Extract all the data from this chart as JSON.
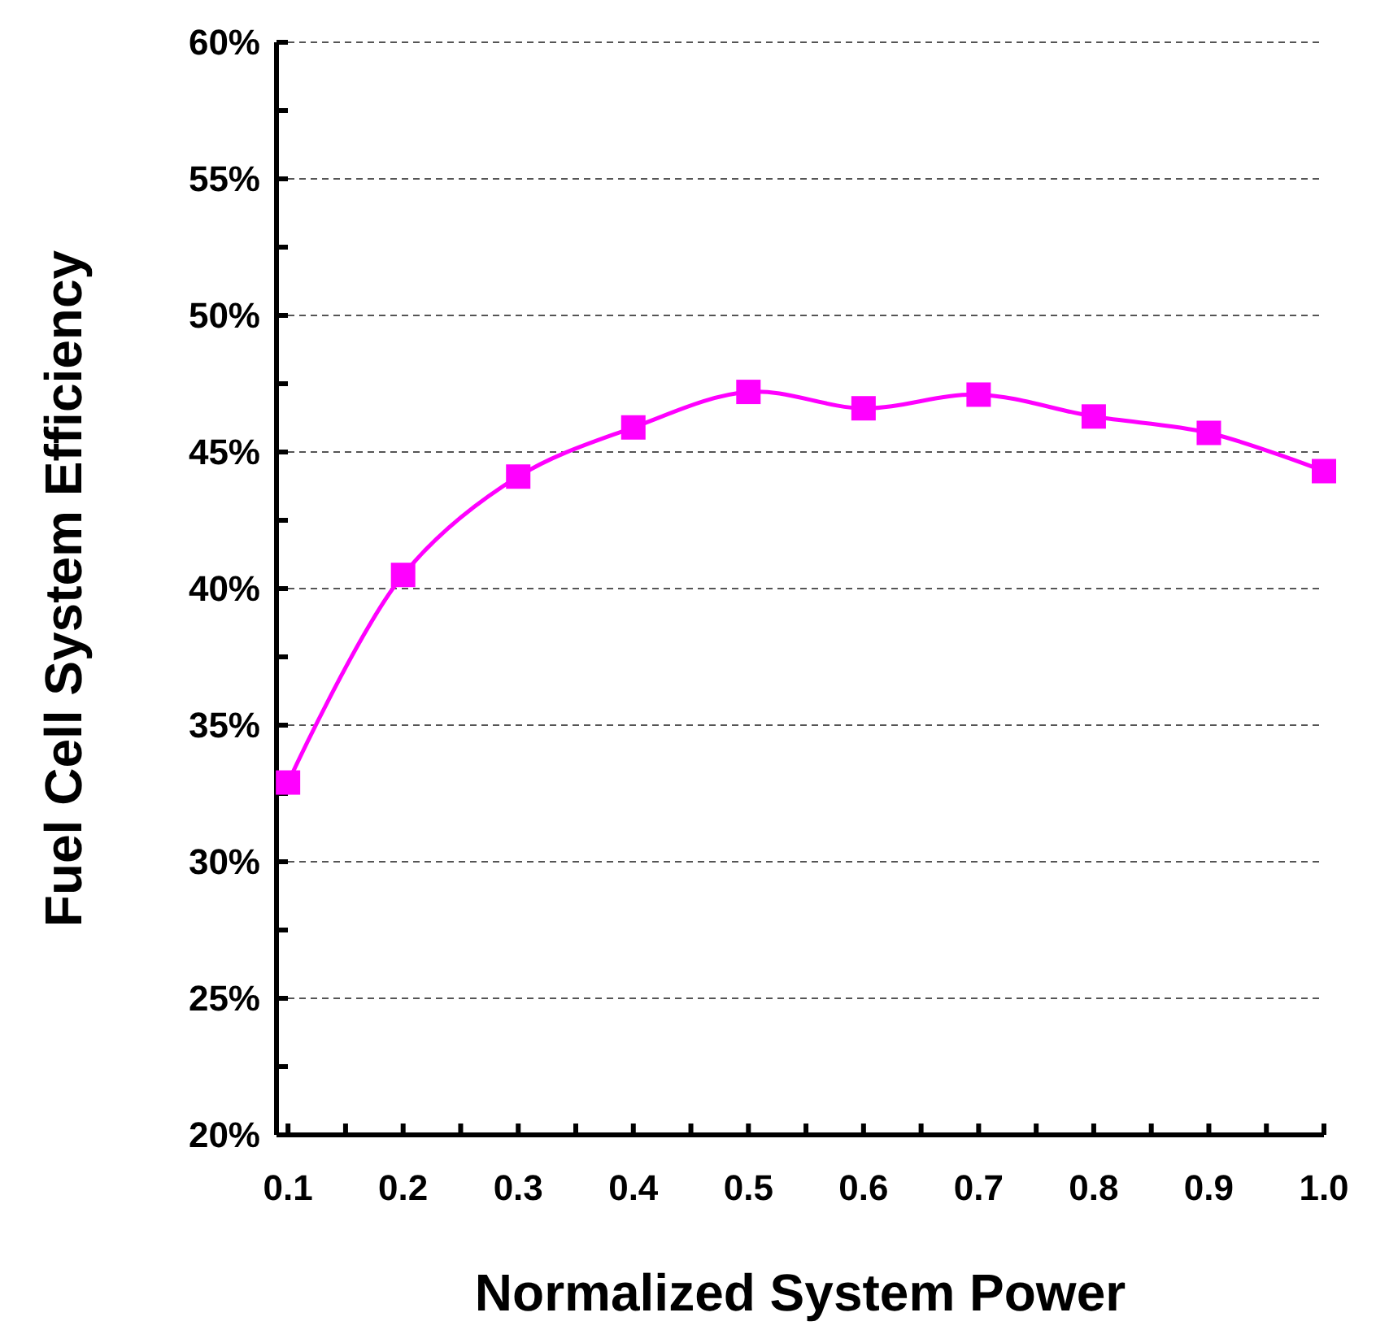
{
  "chart_data": {
    "type": "line",
    "xlabel": "Normalized System Power",
    "ylabel": "Fuel Cell System Efficiency",
    "x": [
      0.1,
      0.2,
      0.3,
      0.4,
      0.5,
      0.6,
      0.7,
      0.8,
      0.9,
      1.0
    ],
    "series": [
      {
        "color": "#ff00ff",
        "values": [
          32.9,
          40.5,
          44.1,
          45.9,
          47.2,
          46.6,
          47.1,
          46.3,
          45.7,
          44.3
        ]
      }
    ],
    "xlim": [
      0.09,
      1.0
    ],
    "xticks": [
      {
        "value": 0.1,
        "label": "0.1"
      },
      {
        "value": 0.15,
        "label": null
      },
      {
        "value": 0.2,
        "label": "0.2"
      },
      {
        "value": 0.25,
        "label": null
      },
      {
        "value": 0.3,
        "label": "0.3"
      },
      {
        "value": 0.35,
        "label": null
      },
      {
        "value": 0.4,
        "label": "0.4"
      },
      {
        "value": 0.45,
        "label": null
      },
      {
        "value": 0.5,
        "label": "0.5"
      },
      {
        "value": 0.55,
        "label": null
      },
      {
        "value": 0.6,
        "label": "0.6"
      },
      {
        "value": 0.65,
        "label": null
      },
      {
        "value": 0.7,
        "label": "0.7"
      },
      {
        "value": 0.75,
        "label": null
      },
      {
        "value": 0.8,
        "label": "0.8"
      },
      {
        "value": 0.85,
        "label": null
      },
      {
        "value": 0.9,
        "label": "0.9"
      },
      {
        "value": 0.95,
        "label": null
      },
      {
        "value": 1.0,
        "label": "1.0"
      }
    ],
    "ylim": [
      20,
      60
    ],
    "yticks": [
      {
        "value": 20,
        "label": "20%"
      },
      {
        "value": 22.5,
        "label": null
      },
      {
        "value": 25,
        "label": "25%"
      },
      {
        "value": 27.5,
        "label": null
      },
      {
        "value": 30,
        "label": "30%"
      },
      {
        "value": 32.5,
        "label": null
      },
      {
        "value": 35,
        "label": "35%"
      },
      {
        "value": 37.5,
        "label": null
      },
      {
        "value": 40,
        "label": "40%"
      },
      {
        "value": 42.5,
        "label": null
      },
      {
        "value": 45,
        "label": "45%"
      },
      {
        "value": 47.5,
        "label": null
      },
      {
        "value": 50,
        "label": "50%"
      },
      {
        "value": 52.5,
        "label": null
      },
      {
        "value": 55,
        "label": "55%"
      },
      {
        "value": 57.5,
        "label": null
      },
      {
        "value": 60,
        "label": "60%"
      }
    ],
    "grid": "y",
    "marker": "square",
    "line_style": "solid"
  }
}
